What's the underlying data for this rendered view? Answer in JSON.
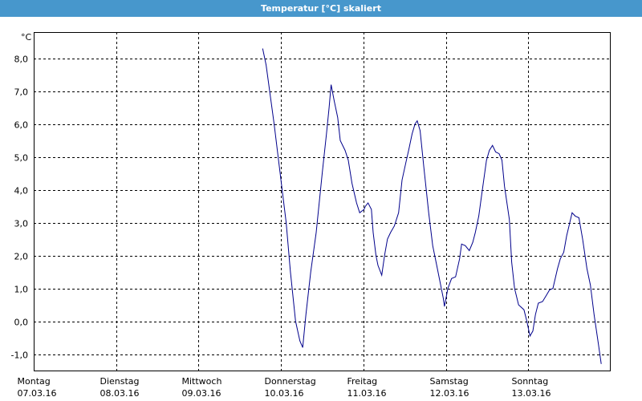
{
  "window": {
    "title": "Temperatur [°C] skaliert"
  },
  "chart_data": {
    "type": "line",
    "title": "Temperatur [°C] skaliert",
    "xlabel": "",
    "ylabel": "°C",
    "ylim": [
      -1.5,
      8.8
    ],
    "yticks": [
      8.0,
      7.0,
      6.0,
      5.0,
      4.0,
      3.0,
      2.0,
      1.0,
      0.0,
      -1.0
    ],
    "ytick_labels": [
      "8,0",
      "7,0",
      "6,0",
      "5,0",
      "4,0",
      "3,0",
      "2,0",
      "1,0",
      "0,0",
      "-1,0"
    ],
    "xlim": [
      "2016-03-07T00:00",
      "2016-03-14T00:00"
    ],
    "x_unit": "day",
    "xticks": [
      {
        "x": "2016-03-07T00:00",
        "day": "Montag",
        "date": "07.03.16"
      },
      {
        "x": "2016-03-08T00:00",
        "day": "Dienstag",
        "date": "08.03.16"
      },
      {
        "x": "2016-03-09T00:00",
        "day": "Mittwoch",
        "date": "09.03.16"
      },
      {
        "x": "2016-03-10T00:00",
        "day": "Donnerstag",
        "date": "10.03.16"
      },
      {
        "x": "2016-03-11T00:00",
        "day": "Freitag",
        "date": "11.03.16"
      },
      {
        "x": "2016-03-12T00:00",
        "day": "Samstag",
        "date": "12.03.16"
      },
      {
        "x": "2016-03-13T00:00",
        "day": "Sonntag",
        "date": "13.03.16"
      }
    ],
    "grid": true,
    "line_color": "#00008b",
    "series": [
      {
        "points": [
          [
            "2016-03-09T18:40",
            8.3
          ],
          [
            "2016-03-09T19:40",
            7.8
          ],
          [
            "2016-03-09T22:00",
            6.0
          ],
          [
            "2016-03-10T00:00",
            4.3
          ],
          [
            "2016-03-10T01:30",
            3.0
          ],
          [
            "2016-03-10T02:45",
            1.5
          ],
          [
            "2016-03-10T04:15",
            0.0
          ],
          [
            "2016-03-10T05:30",
            -0.6
          ],
          [
            "2016-03-10T06:20",
            -0.8
          ],
          [
            "2016-03-10T07:15",
            0.2
          ],
          [
            "2016-03-10T08:40",
            1.5
          ],
          [
            "2016-03-10T10:15",
            2.7
          ],
          [
            "2016-03-10T12:00",
            4.5
          ],
          [
            "2016-03-10T13:15",
            5.7
          ],
          [
            "2016-03-10T14:00",
            6.5
          ],
          [
            "2016-03-10T14:35",
            7.2
          ],
          [
            "2016-03-10T15:30",
            6.7
          ],
          [
            "2016-03-10T16:30",
            6.2
          ],
          [
            "2016-03-10T17:15",
            5.5
          ],
          [
            "2016-03-10T18:40",
            5.2
          ],
          [
            "2016-03-10T19:35",
            4.9
          ],
          [
            "2016-03-10T20:40",
            4.2
          ],
          [
            "2016-03-10T22:00",
            3.6
          ],
          [
            "2016-03-10T22:55",
            3.3
          ],
          [
            "2016-03-11T00:10",
            3.4
          ],
          [
            "2016-03-11T00:35",
            3.5
          ],
          [
            "2016-03-11T01:20",
            3.6
          ],
          [
            "2016-03-11T02:20",
            3.4
          ],
          [
            "2016-03-11T02:50",
            2.7
          ],
          [
            "2016-03-11T03:40",
            2.0
          ],
          [
            "2016-03-11T04:15",
            1.7
          ],
          [
            "2016-03-11T05:20",
            1.4
          ],
          [
            "2016-03-11T06:10",
            2.0
          ],
          [
            "2016-03-11T07:00",
            2.5
          ],
          [
            "2016-03-11T07:55",
            2.7
          ],
          [
            "2016-03-11T09:00",
            2.9
          ],
          [
            "2016-03-11T10:15",
            3.3
          ],
          [
            "2016-03-11T11:15",
            4.3
          ],
          [
            "2016-03-11T12:30",
            4.9
          ],
          [
            "2016-03-11T13:10",
            5.2
          ],
          [
            "2016-03-11T14:10",
            5.7
          ],
          [
            "2016-03-11T15:00",
            6.0
          ],
          [
            "2016-03-11T15:40",
            6.1
          ],
          [
            "2016-03-11T16:30",
            5.8
          ],
          [
            "2016-03-11T17:35",
            4.7
          ],
          [
            "2016-03-11T19:00",
            3.3
          ],
          [
            "2016-03-11T20:10",
            2.3
          ],
          [
            "2016-03-11T21:20",
            1.7
          ],
          [
            "2016-03-11T23:15",
            0.7
          ],
          [
            "2016-03-11T23:35",
            0.45
          ],
          [
            "2016-03-12T00:35",
            1.0
          ],
          [
            "2016-03-12T01:40",
            1.3
          ],
          [
            "2016-03-12T02:50",
            1.35
          ],
          [
            "2016-03-12T04:00",
            1.9
          ],
          [
            "2016-03-12T04:35",
            2.35
          ],
          [
            "2016-03-12T05:40",
            2.3
          ],
          [
            "2016-03-12T06:50",
            2.15
          ],
          [
            "2016-03-12T07:50",
            2.4
          ],
          [
            "2016-03-12T08:35",
            2.7
          ],
          [
            "2016-03-12T09:35",
            3.2
          ],
          [
            "2016-03-12T10:30",
            3.9
          ],
          [
            "2016-03-12T11:50",
            4.9
          ],
          [
            "2016-03-12T12:40",
            5.2
          ],
          [
            "2016-03-12T13:35",
            5.35
          ],
          [
            "2016-03-12T14:30",
            5.15
          ],
          [
            "2016-03-12T15:30",
            5.1
          ],
          [
            "2016-03-12T16:20",
            4.9
          ],
          [
            "2016-03-12T17:05",
            4.1
          ],
          [
            "2016-03-12T18:30",
            3.1
          ],
          [
            "2016-03-12T19:10",
            1.8
          ],
          [
            "2016-03-12T20:00",
            1.0
          ],
          [
            "2016-03-12T21:10",
            0.5
          ],
          [
            "2016-03-12T22:45",
            0.35
          ],
          [
            "2016-03-12T23:35",
            0.0
          ],
          [
            "2016-03-13T00:30",
            -0.45
          ],
          [
            "2016-03-13T01:20",
            -0.3
          ],
          [
            "2016-03-13T02:05",
            0.2
          ],
          [
            "2016-03-13T02:55",
            0.55
          ],
          [
            "2016-03-13T04:10",
            0.6
          ],
          [
            "2016-03-13T05:20",
            0.8
          ],
          [
            "2016-03-13T06:10",
            0.95
          ],
          [
            "2016-03-13T07:10",
            1.0
          ],
          [
            "2016-03-13T08:30",
            1.6
          ],
          [
            "2016-03-13T09:20",
            1.9
          ],
          [
            "2016-03-13T10:20",
            2.1
          ],
          [
            "2016-03-13T11:10",
            2.6
          ],
          [
            "2016-03-13T12:05",
            3.0
          ],
          [
            "2016-03-13T12:45",
            3.3
          ],
          [
            "2016-03-13T13:40",
            3.2
          ],
          [
            "2016-03-13T14:45",
            3.15
          ],
          [
            "2016-03-13T15:50",
            2.5
          ],
          [
            "2016-03-13T17:05",
            1.6
          ],
          [
            "2016-03-13T18:05",
            1.1
          ],
          [
            "2016-03-13T19:10",
            0.2
          ],
          [
            "2016-03-13T20:25",
            -0.7
          ],
          [
            "2016-03-13T21:15",
            -1.3
          ]
        ]
      }
    ]
  }
}
